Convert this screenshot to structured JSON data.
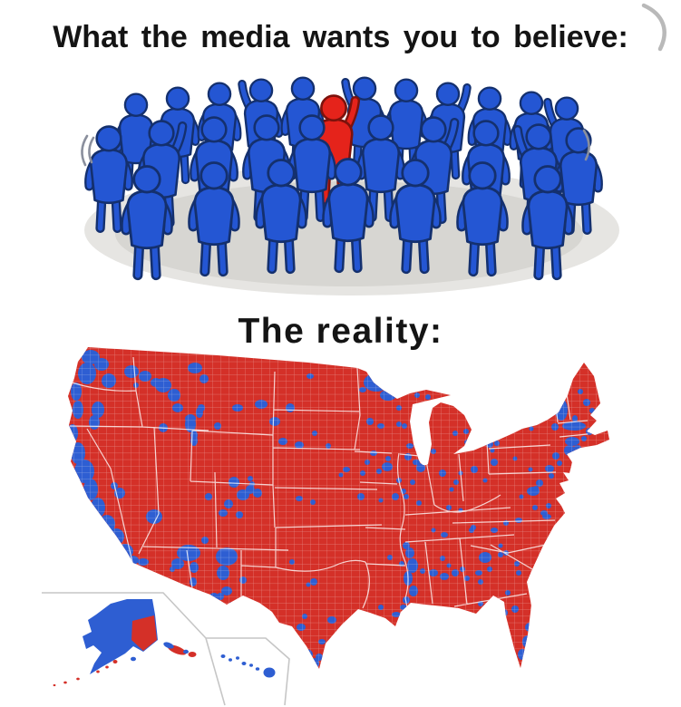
{
  "captions": {
    "top": "What the media wants you to believe:",
    "bottom": "The reality:"
  },
  "crowd": {
    "label": "crowd of people clipart",
    "figures_blue": 28,
    "figures_red": 1,
    "red_figure_pose": "one arm raised"
  },
  "map": {
    "label": "US county-level election map",
    "regions": [
      "contiguous-us",
      "alaska-inset",
      "hawaii-inset"
    ],
    "dominant_color": "red",
    "minority_color": "blue"
  },
  "colors": {
    "background": "#ffffff",
    "caption_text": "#141414",
    "figure_blue": "#2456d3",
    "figure_blue_outline": "#14306e",
    "figure_red": "#e5231b",
    "figure_red_outline": "#7c120c",
    "shadow": "#d7d6d2",
    "shadow_light": "#e6e5e2",
    "motion_mark": "#8a8f9d",
    "curl": "#b9b9b9",
    "map_red": "#d43028",
    "map_blue": "#2e5ed2",
    "county_line": "#ffffff",
    "state_line": "#ffffff",
    "inset_border": "#c6c6c6"
  }
}
